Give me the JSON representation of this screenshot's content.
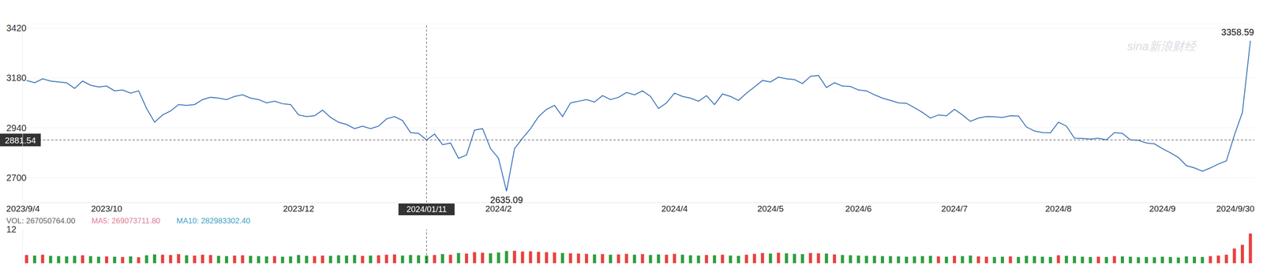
{
  "chart_data": [
    {
      "type": "line",
      "categories": [
        "2023/9/4",
        null,
        null,
        null,
        null,
        null,
        null,
        null,
        null,
        null,
        "2023/10",
        null,
        null,
        null,
        null,
        null,
        null,
        null,
        null,
        null,
        null,
        null,
        null,
        null,
        null,
        null,
        null,
        null,
        null,
        null,
        null,
        null,
        null,
        null,
        "2023/12",
        null,
        null,
        null,
        null,
        null,
        null,
        null,
        null,
        null,
        null,
        null,
        null,
        null,
        null,
        null,
        "2024/01/11",
        null,
        null,
        null,
        null,
        null,
        null,
        null,
        null,
        "2024/2",
        null,
        null,
        null,
        null,
        null,
        null,
        null,
        null,
        null,
        null,
        null,
        null,
        null,
        null,
        null,
        null,
        null,
        null,
        null,
        null,
        null,
        "2024/4",
        null,
        null,
        null,
        null,
        null,
        null,
        null,
        null,
        null,
        null,
        null,
        "2024/5",
        null,
        null,
        null,
        null,
        null,
        null,
        null,
        null,
        null,
        null,
        "2024/6",
        null,
        null,
        null,
        null,
        null,
        null,
        null,
        null,
        null,
        null,
        null,
        "2024/7",
        null,
        null,
        null,
        null,
        null,
        null,
        null,
        null,
        null,
        null,
        null,
        null,
        "2024/8",
        null,
        null,
        null,
        null,
        null,
        null,
        null,
        null,
        null,
        null,
        null,
        null,
        "2024/9",
        null,
        null,
        null,
        null,
        null,
        null,
        null,
        null,
        null,
        null,
        "2024/9/30"
      ],
      "series": [
        {
          "color": "#3b73b9",
          "values": [
            3168,
            3157,
            3176,
            3165,
            3161,
            3157,
            3130,
            3165,
            3145,
            3137,
            3141,
            3118,
            3122,
            3107,
            3118,
            3033,
            2967,
            3002,
            3021,
            3052,
            3048,
            3052,
            3076,
            3087,
            3083,
            3076,
            3091,
            3099,
            3083,
            3076,
            3060,
            3068,
            3056,
            3052,
            3002,
            2994,
            2998,
            3025,
            2990,
            2967,
            2956,
            2936,
            2948,
            2936,
            2948,
            2983,
            2994,
            2975,
            2917,
            2913,
            2881.54,
            2910,
            2859,
            2867,
            2793,
            2809,
            2929,
            2936,
            2840,
            2793,
            2635.09,
            2840,
            2890,
            2936,
            2994,
            3029,
            3048,
            2994,
            3060,
            3068,
            3076,
            3064,
            3095,
            3076,
            3087,
            3110,
            3099,
            3118,
            3091,
            3033,
            3060,
            3107,
            3091,
            3083,
            3068,
            3095,
            3052,
            3103,
            3091,
            3072,
            3107,
            3137,
            3168,
            3161,
            3184,
            3176,
            3172,
            3153,
            3188,
            3192,
            3134,
            3157,
            3141,
            3139,
            3122,
            3118,
            3099,
            3083,
            3072,
            3060,
            3058,
            3037,
            3014,
            2987,
            3002,
            2998,
            3029,
            3002,
            2971,
            2987,
            2994,
            2993,
            2990,
            2998,
            2997,
            2944,
            2925,
            2917,
            2916,
            2967,
            2948,
            2890,
            2889,
            2886,
            2890,
            2882,
            2917,
            2913,
            2882,
            2880,
            2867,
            2863,
            2840,
            2820,
            2797,
            2758,
            2747,
            2731,
            2747,
            2766,
            2781,
            2905,
            3014,
            3358.59
          ]
        }
      ],
      "ylim": [
        2580,
        3440
      ],
      "yticks": [
        2700,
        2940,
        3180,
        3420
      ],
      "grid": true,
      "annotations": [
        {
          "text": "3358.59",
          "value": 3358.59
        },
        {
          "text": "2635.09",
          "value": 2635.09
        }
      ],
      "crosshair": {
        "x": "2024/01/11",
        "value": 2881.54
      },
      "watermark": "sina新浪财经"
    },
    {
      "type": "bar",
      "series": [
        {
          "name": "VOL",
          "values": [
            2.9,
            2.7,
            3.0,
            2.6,
            2.5,
            2.4,
            2.6,
            2.8,
            2.5,
            2.3,
            2.4,
            2.3,
            2.2,
            2.4,
            2.1,
            2.8,
            3.1,
            3.0,
            2.9,
            3.2,
            2.8,
            2.7,
            3.0,
            2.9,
            2.6,
            2.5,
            2.7,
            2.8,
            2.6,
            2.5,
            2.4,
            2.5,
            2.3,
            2.4,
            2.9,
            2.6,
            2.5,
            2.7,
            2.6,
            2.8,
            2.7,
            2.9,
            2.6,
            2.7,
            2.8,
            3.0,
            3.1,
            2.7,
            2.9,
            2.8,
            2.67,
            2.9,
            3.2,
            3.0,
            3.6,
            3.4,
            3.9,
            3.7,
            3.5,
            3.8,
            4.3,
            4.4,
            4.1,
            4.2,
            4.0,
            3.9,
            3.8,
            3.6,
            3.5,
            3.4,
            3.3,
            3.1,
            3.2,
            3.0,
            3.1,
            3.3,
            3.0,
            3.2,
            2.9,
            3.1,
            3.0,
            3.3,
            3.0,
            2.8,
            2.7,
            2.9,
            2.8,
            3.0,
            2.7,
            2.6,
            3.0,
            3.3,
            3.6,
            3.4,
            3.7,
            3.5,
            3.3,
            3.2,
            3.6,
            3.5,
            3.4,
            3.1,
            2.9,
            2.8,
            2.7,
            2.6,
            2.6,
            2.5,
            2.5,
            2.4,
            2.3,
            2.4,
            2.5,
            2.6,
            2.4,
            2.3,
            2.6,
            2.5,
            2.7,
            2.4,
            2.3,
            2.2,
            2.3,
            2.4,
            2.2,
            2.6,
            2.5,
            2.3,
            2.2,
            2.8,
            2.6,
            2.5,
            2.3,
            2.2,
            2.3,
            2.2,
            2.5,
            2.4,
            2.3,
            2.1,
            2.2,
            2.1,
            2.3,
            2.2,
            2.0,
            2.4,
            2.3,
            2.2,
            2.5,
            2.7,
            3.0,
            5.2,
            6.5,
            10.5
          ],
          "colors": [
            "#e8423f",
            "#2e9e3e",
            "#e8423f",
            "#2e9e3e",
            "#2e9e3e",
            "#2e9e3e",
            "#2e9e3e",
            "#e8423f",
            "#2e9e3e",
            "#2e9e3e",
            "#e8423f",
            "#2e9e3e",
            "#e8423f",
            "#2e9e3e",
            "#e8423f",
            "#2e9e3e",
            "#2e9e3e",
            "#e8423f",
            "#e8423f",
            "#e8423f",
            "#2e9e3e",
            "#e8423f",
            "#e8423f",
            "#e8423f",
            "#2e9e3e",
            "#2e9e3e",
            "#e8423f",
            "#e8423f",
            "#2e9e3e",
            "#2e9e3e",
            "#2e9e3e",
            "#e8423f",
            "#2e9e3e",
            "#2e9e3e",
            "#2e9e3e",
            "#2e9e3e",
            "#e8423f",
            "#e8423f",
            "#2e9e3e",
            "#2e9e3e",
            "#2e9e3e",
            "#2e9e3e",
            "#e8423f",
            "#2e9e3e",
            "#e8423f",
            "#e8423f",
            "#e8423f",
            "#2e9e3e",
            "#2e9e3e",
            "#2e9e3e",
            "#2e9e3e",
            "#e8423f",
            "#2e9e3e",
            "#e8423f",
            "#2e9e3e",
            "#e8423f",
            "#e8423f",
            "#e8423f",
            "#2e9e3e",
            "#2e9e3e",
            "#2e9e3e",
            "#e8423f",
            "#e8423f",
            "#e8423f",
            "#e8423f",
            "#e8423f",
            "#e8423f",
            "#2e9e3e",
            "#e8423f",
            "#e8423f",
            "#e8423f",
            "#2e9e3e",
            "#e8423f",
            "#2e9e3e",
            "#e8423f",
            "#e8423f",
            "#2e9e3e",
            "#e8423f",
            "#2e9e3e",
            "#2e9e3e",
            "#e8423f",
            "#e8423f",
            "#2e9e3e",
            "#2e9e3e",
            "#2e9e3e",
            "#e8423f",
            "#2e9e3e",
            "#e8423f",
            "#2e9e3e",
            "#2e9e3e",
            "#e8423f",
            "#e8423f",
            "#e8423f",
            "#2e9e3e",
            "#e8423f",
            "#2e9e3e",
            "#2e9e3e",
            "#2e9e3e",
            "#e8423f",
            "#e8423f",
            "#2e9e3e",
            "#e8423f",
            "#2e9e3e",
            "#2e9e3e",
            "#2e9e3e",
            "#2e9e3e",
            "#2e9e3e",
            "#2e9e3e",
            "#2e9e3e",
            "#2e9e3e",
            "#2e9e3e",
            "#2e9e3e",
            "#2e9e3e",
            "#2e9e3e",
            "#e8423f",
            "#2e9e3e",
            "#e8423f",
            "#2e9e3e",
            "#2e9e3e",
            "#e8423f",
            "#e8423f",
            "#2e9e3e",
            "#2e9e3e",
            "#e8423f",
            "#2e9e3e",
            "#2e9e3e",
            "#2e9e3e",
            "#2e9e3e",
            "#2e9e3e",
            "#e8423f",
            "#2e9e3e",
            "#2e9e3e",
            "#2e9e3e",
            "#2e9e3e",
            "#e8423f",
            "#2e9e3e",
            "#e8423f",
            "#2e9e3e",
            "#2e9e3e",
            "#2e9e3e",
            "#2e9e3e",
            "#2e9e3e",
            "#2e9e3e",
            "#2e9e3e",
            "#2e9e3e",
            "#2e9e3e",
            "#2e9e3e",
            "#2e9e3e",
            "#e8423f",
            "#e8423f",
            "#e8423f",
            "#e8423f",
            "#e8423f",
            "#e8423f"
          ]
        }
      ],
      "ylim": [
        0,
        12
      ],
      "yticks": [
        12
      ],
      "header": [
        {
          "text": "VOL: 267050764.00",
          "color": "#666666"
        },
        {
          "text": "MA5: 269073711.80",
          "color": "#e07f98"
        },
        {
          "text": "MA10: 282983302.40",
          "color": "#3fa3c4"
        }
      ]
    }
  ]
}
